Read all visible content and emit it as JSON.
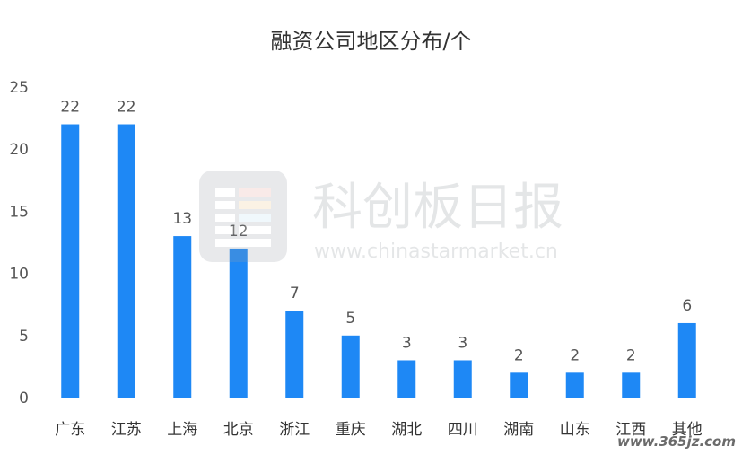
{
  "chart_data": {
    "type": "bar",
    "title": "融资公司地区分布/个",
    "xlabel": "",
    "ylabel": "",
    "categories": [
      "广东",
      "江苏",
      "上海",
      "北京",
      "浙江",
      "重庆",
      "湖北",
      "四川",
      "湖南",
      "山东",
      "江西",
      "其他"
    ],
    "values": [
      22,
      22,
      13,
      12,
      7,
      5,
      3,
      3,
      2,
      2,
      2,
      6
    ],
    "ylim": [
      0,
      25
    ],
    "yticks": [
      0,
      5,
      10,
      15,
      20,
      25
    ],
    "grid": false,
    "legend": "none",
    "bar_color": "#1E88F5",
    "axis_color": "#D0D0D0"
  },
  "watermark": {
    "brand_text": "科创板日报",
    "url_text": "www.chinastarmarket.cn",
    "corner_text": "www.365jz.com"
  }
}
